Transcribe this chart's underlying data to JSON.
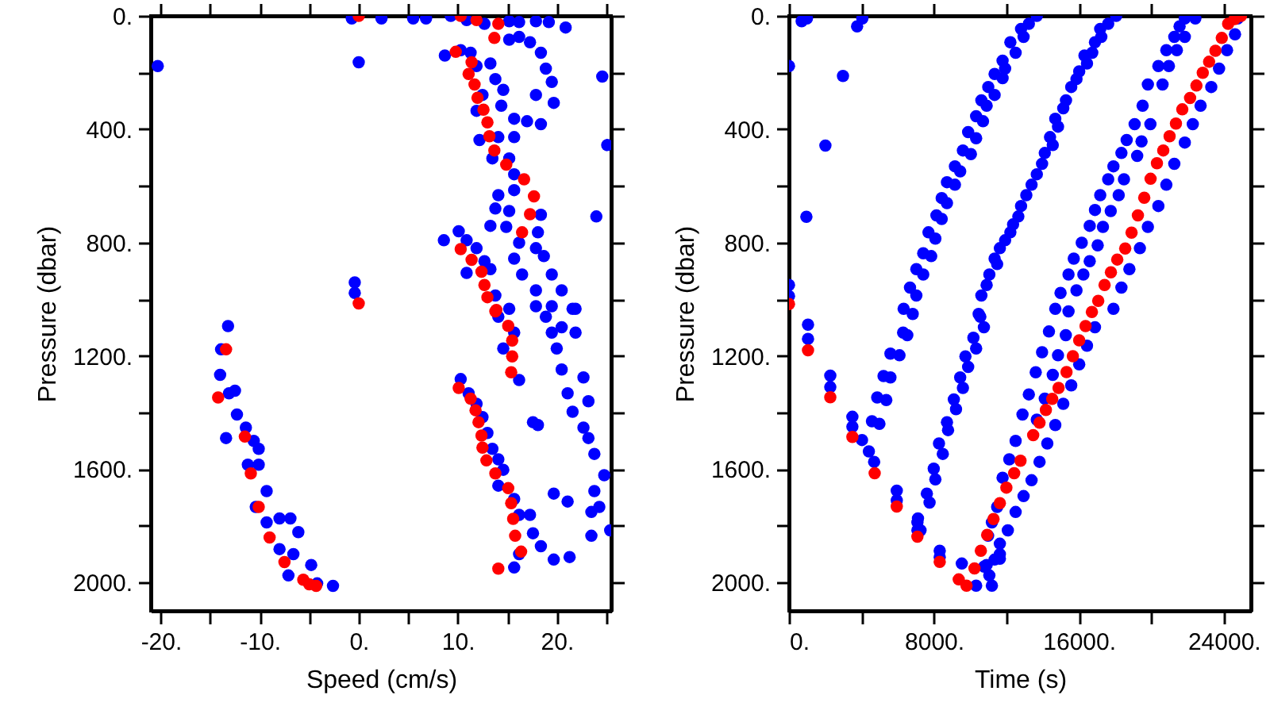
{
  "chart_data": [
    {
      "type": "scatter",
      "xlabel": "Speed (cm/s)",
      "ylabel": "Pressure (dbar)",
      "marker": "circle",
      "xlim": [
        -21,
        25.5
      ],
      "ylim": [
        2100,
        0
      ],
      "xticks": [
        {
          "value": -20,
          "label": "-20."
        },
        {
          "value": -15,
          "label": null
        },
        {
          "value": -10,
          "label": "-10."
        },
        {
          "value": -5,
          "label": null
        },
        {
          "value": 0,
          "label": "0."
        },
        {
          "value": 5,
          "label": null
        },
        {
          "value": 10,
          "label": "10."
        },
        {
          "value": 15,
          "label": null
        },
        {
          "value": 20,
          "label": "20."
        },
        {
          "value": 25,
          "label": null
        }
      ],
      "yticks": [
        {
          "value": 0,
          "label": "0."
        },
        {
          "value": 200,
          "label": null
        },
        {
          "value": 400,
          "label": "400."
        },
        {
          "value": 600,
          "label": null
        },
        {
          "value": 800,
          "label": "800."
        },
        {
          "value": 1000,
          "label": null
        },
        {
          "value": 1200,
          "label": "1200."
        },
        {
          "value": 1400,
          "label": null
        },
        {
          "value": 1600,
          "label": "1600."
        },
        {
          "value": 1800,
          "label": null
        },
        {
          "value": 2000,
          "label": "2000."
        }
      ],
      "series": [
        {
          "color": "#0000ff",
          "x": [
            -20.3,
            0.0,
            -0.7,
            2.3,
            5.5,
            6.8,
            9.3,
            10.9,
            12.7,
            15.2,
            16.2,
            17.9,
            19.2,
            20.9,
            8.7,
            10.3,
            11.3,
            11.9,
            13.3,
            15.2,
            16.2,
            17.3,
            18.4,
            18.9,
            19.5,
            19.7,
            17.9,
            17.0,
            18.4,
            12.5,
            13.8,
            14.6,
            11.9,
            14.4,
            15.7,
            12.2,
            14.1,
            15.7,
            13.5,
            15.2,
            15.7,
            14.1,
            15.7,
            13.8,
            15.2,
            18.4,
            13.3,
            14.9,
            16.2,
            18.1,
            17.9,
            15.7,
            18.7,
            16.5,
            19.5,
            17.9,
            20.5,
            19.5,
            21.6,
            24.0,
            24.6,
            25.1,
            8.6,
            10.1,
            10.9,
            11.9,
            12.7,
            10.9,
            13.3,
            13.8,
            -0.4,
            -0.4,
            -13.2,
            -13.9,
            -14.0,
            -13.1,
            -12.5,
            -12.3,
            -11.4,
            -13.4,
            -10.6,
            -10.1,
            -11.2,
            -10.1,
            -9.3,
            -10.4,
            -9.3,
            -8.0,
            -6.9,
            -6.1,
            -8.0,
            -6.6,
            -7.1,
            -4.8,
            -4.2,
            -2.6,
            10.3,
            11.1,
            11.9,
            12.5,
            13.0,
            13.5,
            14.1,
            14.6,
            14.1,
            15.7,
            16.2,
            17.3,
            17.6,
            18.4,
            16.2,
            15.7,
            15.2,
            15.7,
            14.6,
            16.2,
            14.1,
            17.9,
            18.9,
            19.5,
            20.0,
            20.5,
            21.1,
            21.6,
            22.7,
            23.2,
            23.8,
            24.8,
            23.8,
            24.3,
            23.5,
            25.4,
            23.5,
            17.6,
            18.1,
            19.7,
            21.1,
            19.7,
            21.3,
            21.9,
            20.5,
            21.9,
            22.7,
            23.2
          ],
          "values": [
            177,
            164,
            9,
            9,
            9,
            9,
            0,
            15,
            28,
            19,
            22,
            19,
            22,
            41,
            140,
            121,
            130,
            177,
            168,
            84,
            74,
            93,
            130,
            186,
            233,
            307,
            279,
            372,
            382,
            279,
            223,
            261,
            335,
            317,
            363,
            438,
            428,
            428,
            503,
            503,
            559,
            633,
            615,
            680,
            689,
            702,
            741,
            745,
            801,
            764,
            820,
            857,
            848,
            913,
            913,
            969,
            969,
            1025,
            1034,
            708,
            214,
            456,
            792,
            760,
            792,
            820,
            866,
            907,
            894,
            987,
            941,
            978,
            1095,
            1177,
            1267,
            1332,
            1323,
            1407,
            1453,
            1490,
            1500,
            1528,
            1584,
            1584,
            1677,
            1733,
            1788,
            1774,
            1774,
            1822,
            1882,
            1900,
            1975,
            1938,
            2003,
            2012,
            1282,
            1332,
            1369,
            1416,
            1472,
            1528,
            1565,
            1602,
            1658,
            1705,
            1761,
            1761,
            1826,
            1872,
            1900,
            1947,
            1034,
            1118,
            1174,
            1285,
            1062,
            1025,
            1062,
            1118,
            1174,
            1248,
            1332,
            1397,
            1453,
            1490,
            1546,
            1621,
            1677,
            1733,
            1751,
            1816,
            1835,
            1434,
            1444,
            1686,
            1714,
            1919,
            1910,
            1034,
            1099,
            1118,
            1276,
            1360
          ]
        },
        {
          "color": "#ff0000",
          "x": [
            0.0,
            10.3,
            11.9,
            14.1,
            13.7,
            9.8,
            11.4,
            11.1,
            11.7,
            12.0,
            12.6,
            13.0,
            13.2,
            13.7,
            14.9,
            16.7,
            17.7,
            17.3,
            16.5,
            10.3,
            11.4,
            12.4,
            12.7,
            13.0,
            13.9,
            0.0,
            13.8,
            15.1,
            15.5,
            15.5,
            15.4,
            10.1,
            11.3,
            11.8,
            12.1,
            12.4,
            12.5,
            12.9,
            13.8,
            15.1,
            15.4,
            15.6,
            15.8,
            16.4,
            14.1,
            -13.4,
            -14.2,
            -11.5,
            -10.9,
            -10.1,
            -9.0,
            -7.5,
            -5.6,
            -5.0,
            -4.3
          ],
          "values": [
            0,
            0,
            15,
            28,
            78,
            127,
            164,
            205,
            242,
            289,
            331,
            376,
            425,
            475,
            525,
            577,
            637,
            700,
            764,
            823,
            861,
            903,
            950,
            993,
            1038,
            1015,
            1043,
            1094,
            1146,
            1202,
            1258,
            1313,
            1351,
            1392,
            1434,
            1481,
            1524,
            1569,
            1615,
            1667,
            1720,
            1775,
            1835,
            1891,
            1951,
            1177,
            1347,
            1485,
            1615,
            1733,
            1841,
            1928,
            1990,
            2006,
            2012
          ]
        }
      ]
    },
    {
      "type": "scatter",
      "xlabel": "Time (s)",
      "ylabel": "Pressure (dbar)",
      "marker": "circle",
      "xlim": [
        0,
        25500
      ],
      "ylim": [
        2100,
        0
      ],
      "xticks": [
        {
          "value": 0,
          "label": "0."
        },
        {
          "value": 4000,
          "label": null
        },
        {
          "value": 8000,
          "label": "8000."
        },
        {
          "value": 12000,
          "label": null
        },
        {
          "value": 16000,
          "label": "16000."
        },
        {
          "value": 20000,
          "label": null
        },
        {
          "value": 24000,
          "label": "24000."
        }
      ],
      "yticks": [
        {
          "value": 0,
          "label": "0."
        },
        {
          "value": 200,
          "label": null
        },
        {
          "value": 400,
          "label": "400."
        },
        {
          "value": 600,
          "label": null
        },
        {
          "value": 800,
          "label": "800."
        },
        {
          "value": 1000,
          "label": null
        },
        {
          "value": 1200,
          "label": "1200."
        },
        {
          "value": 1400,
          "label": null
        },
        {
          "value": 1600,
          "label": "1600."
        },
        {
          "value": 1800,
          "label": null
        },
        {
          "value": 2000,
          "label": "2000."
        }
      ],
      "series": [
        {
          "color": "#0000ff",
          "x": [
            700,
            990,
            3760,
            4050,
            0,
            2980,
            2010,
            960,
            0,
            0,
            1050,
            1050,
            2280,
            2280,
            3500,
            3500,
            4030,
            4410,
            4700,
            5950,
            5950,
            7090,
            7090,
            8320,
            8320,
            9540,
            10330,
            11200,
            10770,
            11640,
            13680,
            13240,
            12810,
            12950,
            12220,
            12510,
            11790,
            11930,
            11350,
            11790,
            11000,
            11350,
            10620,
            10910,
            10330,
            10710,
            9890,
            10330,
            9600,
            10040,
            9160,
            9450,
            8720,
            9160,
            8430,
            8720,
            8140,
            8430,
            7700,
            8080,
            7410,
            7850,
            7030,
            7410,
            6680,
            7030,
            6330,
            6830,
            6300,
            6530,
            5600,
            6100,
            5220,
            5600,
            4870,
            5370,
            4580,
            4990,
            18060,
            17620,
            17180,
            17240,
            16890,
            16740,
            16310,
            16450,
            16020,
            15870,
            15580,
            15290,
            15140,
            14700,
            14850,
            14410,
            14560,
            14120,
            13970,
            13680,
            13390,
            13100,
            12810,
            12660,
            12370,
            12220,
            11930,
            11640,
            11350,
            11490,
            11060,
            10910,
            10620,
            10470,
            10560,
            10760,
            10180,
            10330,
            9740,
            9890,
            9450,
            9600,
            9100,
            9220,
            8720,
            8780,
            8280,
            8490,
            7990,
            8080,
            7610,
            7760,
            7120,
            7260,
            21850,
            21560,
            21270,
            20830,
            20390,
            19810,
            19520,
            19080,
            18640,
            18350,
            17910,
            17620,
            17180,
            16890,
            16600,
            16160,
            15720,
            15430,
            14990,
            14700,
            22430,
            21850,
            21410,
            20970,
            20620,
            19950,
            19460,
            19220,
            18490,
            18200,
            17760,
            17330,
            17040,
            16600,
            16250,
            15870,
            15430,
            14350,
            15280,
            13970,
            14850,
            13620,
            14560,
            13240,
            14120,
            12890,
            13680,
            12510,
            12160,
            11790,
            11490,
            11200,
            10990,
            11640,
            10910,
            24770,
            24620,
            24180,
            23740,
            23310,
            22720,
            22290,
            21850,
            21270,
            20830,
            20390,
            19810,
            19370,
            18790,
            18350,
            17910,
            16890,
            16450,
            16020,
            15580,
            15140,
            14700,
            14260,
            13830,
            13390,
            12950,
            12510,
            12080,
            11640,
            11350,
            11060
          ],
          "values": [
            19,
            9,
            37,
            9,
            177,
            212,
            458,
            709,
            950,
            989,
            1090,
            1140,
            1270,
            1310,
            1415,
            1450,
            1497,
            1537,
            1574,
            1676,
            1710,
            1788,
            1815,
            1888,
            1910,
            1933,
            2011,
            2011,
            1944,
            1916,
            0,
            28,
            46,
            74,
            93,
            130,
            158,
            186,
            205,
            220,
            251,
            279,
            298,
            317,
            354,
            372,
            410,
            432,
            475,
            488,
            531,
            549,
            587,
            596,
            643,
            661,
            704,
            717,
            764,
            786,
            838,
            848,
            894,
            913,
            959,
            987,
            1034,
            1052,
            1118,
            1127,
            1192,
            1198,
            1271,
            1276,
            1347,
            1356,
            1431,
            1440,
            0,
            28,
            46,
            74,
            93,
            130,
            140,
            168,
            196,
            223,
            251,
            298,
            326,
            363,
            391,
            428,
            456,
            484,
            522,
            559,
            596,
            633,
            671,
            708,
            736,
            764,
            792,
            820,
            857,
            876,
            913,
            950,
            987,
            1052,
            1062,
            1099,
            1136,
            1174,
            1202,
            1239,
            1276,
            1313,
            1354,
            1388,
            1434,
            1462,
            1509,
            1546,
            1598,
            1636,
            1686,
            1718,
            1774,
            1816,
            9,
            37,
            74,
            121,
            177,
            242,
            317,
            382,
            438,
            484,
            531,
            577,
            633,
            685,
            741,
            801,
            857,
            913,
            978,
            1034,
            9,
            74,
            121,
            177,
            242,
            382,
            443,
            494,
            577,
            633,
            689,
            745,
            810,
            866,
            913,
            969,
            1043,
            1114,
            1127,
            1187,
            1198,
            1258,
            1267,
            1336,
            1351,
            1407,
            1425,
            1500,
            1565,
            1630,
            1733,
            1788,
            1835,
            1900,
            1938,
            9,
            65,
            121,
            186,
            251,
            317,
            382,
            447,
            522,
            596,
            671,
            745,
            820,
            894,
            959,
            1034,
            1099,
            1164,
            1230,
            1304,
            1369,
            1444,
            1509,
            1574,
            1639,
            1695,
            1751,
            1816,
            1863,
            1919,
            1975
          ]
        },
        {
          "color": "#ff0000",
          "x": [
            0,
            1050,
            2280,
            3500,
            4730,
            5950,
            7090,
            8320,
            9370,
            9800,
            10240,
            10590,
            10940,
            11290,
            11640,
            12000,
            12430,
            12780,
            13480,
            13830,
            14180,
            14530,
            14880,
            15320,
            15670,
            16020,
            16370,
            16720,
            17070,
            17420,
            17770,
            18120,
            18560,
            18910,
            19260,
            19610,
            19960,
            20310,
            20660,
            21010,
            21360,
            21710,
            22140,
            22490,
            22840,
            23190,
            23540,
            23890,
            24240,
            24600,
            24950
          ],
          "values": [
            1017,
            1180,
            1346,
            1486,
            1614,
            1732,
            1838,
            1927,
            1989,
            2011,
            1950,
            1888,
            1832,
            1776,
            1720,
            1665,
            1614,
            1570,
            1480,
            1436,
            1391,
            1352,
            1313,
            1257,
            1201,
            1145,
            1095,
            1045,
            1006,
            950,
            905,
            860,
            821,
            765,
            704,
            642,
            575,
            520,
            475,
            425,
            380,
            330,
            290,
            246,
            201,
            162,
            123,
            78,
            28,
            11,
            0
          ]
        }
      ]
    }
  ]
}
